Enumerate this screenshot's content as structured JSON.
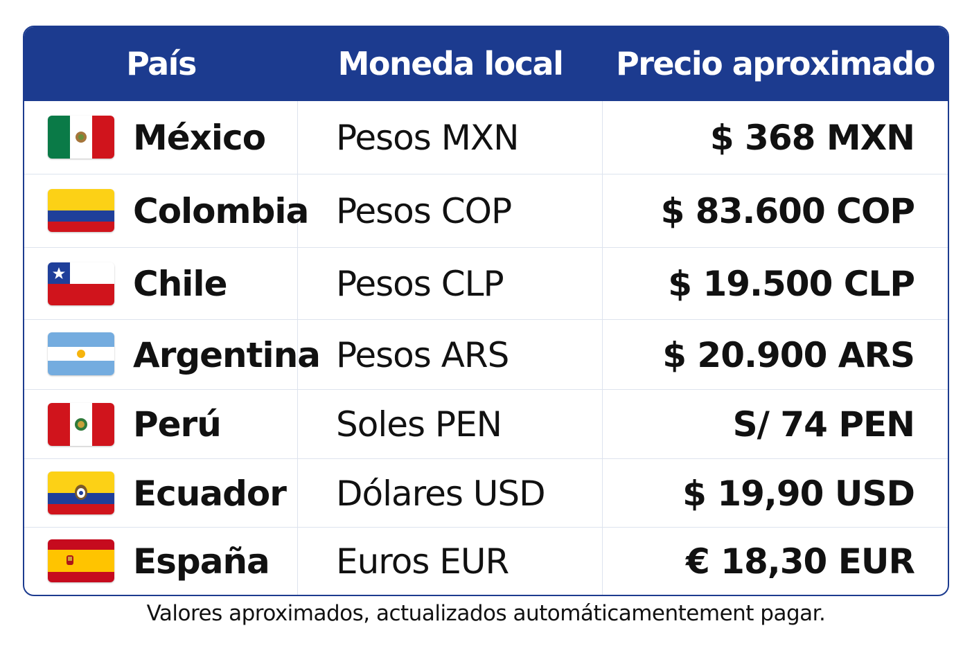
{
  "table": {
    "headers": {
      "country": "País",
      "currency": "Moneda local",
      "price": "Precio aproximado"
    },
    "rows": [
      {
        "country": "México",
        "currency": "Pesos MXN",
        "price": "$ 368 MXN",
        "flag_icon": "mexico-flag-icon"
      },
      {
        "country": "Colombia",
        "currency": "Pesos COP",
        "price": "$ 83.600 COP",
        "flag_icon": "colombia-flag-icon"
      },
      {
        "country": "Chile",
        "currency": "Pesos CLP",
        "price": "$ 19.500 CLP",
        "flag_icon": "chile-flag-icon"
      },
      {
        "country": "Argentina",
        "currency": "Pesos ARS",
        "price": "$ 20.900 ARS",
        "flag_icon": "argentina-flag-icon"
      },
      {
        "country": "Perú",
        "currency": "Soles PEN",
        "price": "S/ 74 PEN",
        "flag_icon": "peru-flag-icon"
      },
      {
        "country": "Ecuador",
        "currency": "Dólares USD",
        "price": "$ 19,90 USD",
        "flag_icon": "ecuador-flag-icon"
      },
      {
        "country": "España",
        "currency": "Euros EUR",
        "price": "€ 18,30 EUR",
        "flag_icon": "spain-flag-icon"
      }
    ]
  },
  "footnote": "Valores aproximados, actualizados automáticamentement pagar.",
  "colors": {
    "header_background": "#1c3b8f",
    "header_text": "#ffffff",
    "border": "#1c3b8f",
    "grid_line": "#dde3ee",
    "text": "#111111"
  }
}
